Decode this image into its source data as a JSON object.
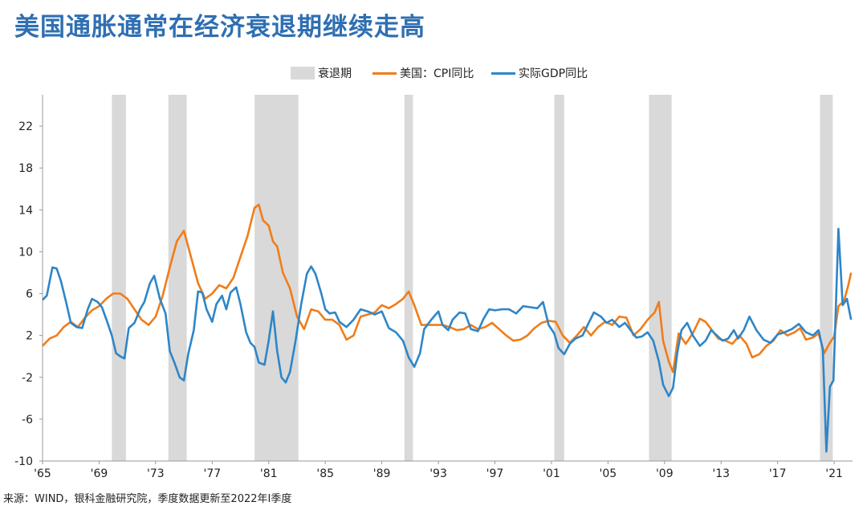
{
  "title": "美国通胀通常在经济衰退期继续走高",
  "source": "来源：WIND，银科金融研究院，季度数据更新至2022年I季度",
  "chart_data": {
    "type": "line",
    "legend": [
      {
        "name": "衰退期",
        "kind": "box",
        "color": "#d9d9d9"
      },
      {
        "name": "美国：CPI同比",
        "kind": "line",
        "color": "#f07d1a"
      },
      {
        "name": "实际GDP同比",
        "kind": "line",
        "color": "#2e86c8"
      }
    ],
    "legend_position": "top-center",
    "ylim": [
      -10,
      25
    ],
    "yticks": [
      -10,
      -6,
      -2,
      2,
      6,
      10,
      14,
      18,
      22
    ],
    "xlim": [
      1965,
      2022.3
    ],
    "xticks": [
      {
        "v": 1965,
        "label": "'65"
      },
      {
        "v": 1969,
        "label": "'69"
      },
      {
        "v": 1973,
        "label": "'73"
      },
      {
        "v": 1977,
        "label": "'77"
      },
      {
        "v": 1981,
        "label": "'81"
      },
      {
        "v": 1985,
        "label": "'85"
      },
      {
        "v": 1989,
        "label": "'89"
      },
      {
        "v": 1993,
        "label": "'93"
      },
      {
        "v": 1997,
        "label": "'97"
      },
      {
        "v": 2001,
        "label": "'01"
      },
      {
        "v": 2005,
        "label": "'05"
      },
      {
        "v": 2009,
        "label": "'09"
      },
      {
        "v": 2013,
        "label": "'13"
      },
      {
        "v": 2017,
        "label": "'17"
      },
      {
        "v": 2021,
        "label": "'21"
      }
    ],
    "grid": false,
    "recessions": [
      [
        1969.9,
        1970.9
      ],
      [
        1973.9,
        1975.2
      ],
      [
        1980.0,
        1983.1
      ],
      [
        1990.6,
        1991.2
      ],
      [
        2001.2,
        2001.9
      ],
      [
        2007.9,
        2009.5
      ],
      [
        2020.0,
        2020.9
      ]
    ],
    "series": [
      {
        "name": "美国：CPI同比",
        "color": "#f07d1a",
        "points": [
          [
            1965.0,
            1.0
          ],
          [
            1965.5,
            1.7
          ],
          [
            1966.0,
            2.0
          ],
          [
            1966.5,
            2.8
          ],
          [
            1967.0,
            3.3
          ],
          [
            1967.5,
            2.8
          ],
          [
            1968.0,
            3.7
          ],
          [
            1968.5,
            4.4
          ],
          [
            1969.0,
            4.8
          ],
          [
            1969.5,
            5.5
          ],
          [
            1970.0,
            6.0
          ],
          [
            1970.5,
            6.0
          ],
          [
            1971.0,
            5.5
          ],
          [
            1971.5,
            4.5
          ],
          [
            1972.0,
            3.5
          ],
          [
            1972.5,
            3.0
          ],
          [
            1973.0,
            3.8
          ],
          [
            1973.5,
            5.8
          ],
          [
            1974.0,
            8.5
          ],
          [
            1974.5,
            11.0
          ],
          [
            1975.0,
            12.0
          ],
          [
            1975.5,
            9.5
          ],
          [
            1976.0,
            7.0
          ],
          [
            1976.5,
            5.5
          ],
          [
            1977.0,
            6.0
          ],
          [
            1977.5,
            6.8
          ],
          [
            1978.0,
            6.5
          ],
          [
            1978.5,
            7.5
          ],
          [
            1979.0,
            9.5
          ],
          [
            1979.5,
            11.5
          ],
          [
            1980.0,
            14.2
          ],
          [
            1980.3,
            14.5
          ],
          [
            1980.6,
            13.0
          ],
          [
            1981.0,
            12.5
          ],
          [
            1981.3,
            11.0
          ],
          [
            1981.6,
            10.5
          ],
          [
            1982.0,
            8.0
          ],
          [
            1982.5,
            6.5
          ],
          [
            1983.0,
            3.8
          ],
          [
            1983.5,
            2.6
          ],
          [
            1984.0,
            4.5
          ],
          [
            1984.5,
            4.3
          ],
          [
            1985.0,
            3.5
          ],
          [
            1985.5,
            3.5
          ],
          [
            1986.0,
            3.0
          ],
          [
            1986.5,
            1.6
          ],
          [
            1987.0,
            2.0
          ],
          [
            1987.5,
            3.8
          ],
          [
            1988.0,
            4.0
          ],
          [
            1988.5,
            4.2
          ],
          [
            1989.0,
            4.9
          ],
          [
            1989.5,
            4.6
          ],
          [
            1990.0,
            5.0
          ],
          [
            1990.5,
            5.5
          ],
          [
            1990.9,
            6.2
          ],
          [
            1991.3,
            4.9
          ],
          [
            1991.8,
            3.0
          ],
          [
            1992.3,
            3.0
          ],
          [
            1992.8,
            3.0
          ],
          [
            1993.3,
            3.0
          ],
          [
            1993.8,
            2.8
          ],
          [
            1994.3,
            2.5
          ],
          [
            1994.8,
            2.6
          ],
          [
            1995.3,
            3.0
          ],
          [
            1995.8,
            2.6
          ],
          [
            1996.3,
            2.8
          ],
          [
            1996.8,
            3.2
          ],
          [
            1997.3,
            2.6
          ],
          [
            1997.8,
            2.0
          ],
          [
            1998.3,
            1.5
          ],
          [
            1998.8,
            1.6
          ],
          [
            1999.3,
            2.0
          ],
          [
            1999.8,
            2.7
          ],
          [
            2000.3,
            3.2
          ],
          [
            2000.8,
            3.4
          ],
          [
            2001.3,
            3.3
          ],
          [
            2001.8,
            2.0
          ],
          [
            2002.3,
            1.3
          ],
          [
            2002.8,
            2.0
          ],
          [
            2003.3,
            2.8
          ],
          [
            2003.8,
            2.0
          ],
          [
            2004.3,
            2.8
          ],
          [
            2004.8,
            3.3
          ],
          [
            2005.3,
            3.0
          ],
          [
            2005.8,
            3.8
          ],
          [
            2006.3,
            3.7
          ],
          [
            2006.8,
            2.0
          ],
          [
            2007.3,
            2.6
          ],
          [
            2007.8,
            3.5
          ],
          [
            2008.3,
            4.2
          ],
          [
            2008.6,
            5.2
          ],
          [
            2008.9,
            1.5
          ],
          [
            2009.3,
            -0.5
          ],
          [
            2009.6,
            -1.5
          ],
          [
            2010.0,
            2.2
          ],
          [
            2010.5,
            1.2
          ],
          [
            2011.0,
            2.2
          ],
          [
            2011.5,
            3.6
          ],
          [
            2011.9,
            3.3
          ],
          [
            2012.3,
            2.6
          ],
          [
            2012.8,
            1.7
          ],
          [
            2013.3,
            1.5
          ],
          [
            2013.8,
            1.2
          ],
          [
            2014.3,
            2.0
          ],
          [
            2014.8,
            1.2
          ],
          [
            2015.2,
            -0.1
          ],
          [
            2015.7,
            0.2
          ],
          [
            2016.2,
            1.0
          ],
          [
            2016.7,
            1.5
          ],
          [
            2017.2,
            2.5
          ],
          [
            2017.7,
            2.0
          ],
          [
            2018.2,
            2.3
          ],
          [
            2018.6,
            2.7
          ],
          [
            2019.0,
            1.6
          ],
          [
            2019.5,
            1.8
          ],
          [
            2019.9,
            2.2
          ],
          [
            2020.3,
            0.3
          ],
          [
            2020.7,
            1.3
          ],
          [
            2021.0,
            1.9
          ],
          [
            2021.3,
            4.8
          ],
          [
            2021.7,
            5.3
          ],
          [
            2022.0,
            6.8
          ],
          [
            2022.2,
            8.0
          ]
        ]
      },
      {
        "name": "实际GDP同比",
        "color": "#2e86c8",
        "points": [
          [
            1965.0,
            5.4
          ],
          [
            1965.3,
            5.8
          ],
          [
            1965.7,
            8.5
          ],
          [
            1966.0,
            8.4
          ],
          [
            1966.3,
            7.2
          ],
          [
            1966.7,
            5.0
          ],
          [
            1967.0,
            3.2
          ],
          [
            1967.4,
            2.8
          ],
          [
            1967.8,
            2.7
          ],
          [
            1968.2,
            4.5
          ],
          [
            1968.5,
            5.5
          ],
          [
            1968.9,
            5.2
          ],
          [
            1969.2,
            4.7
          ],
          [
            1969.6,
            3.2
          ],
          [
            1969.9,
            2.0
          ],
          [
            1970.2,
            0.3
          ],
          [
            1970.5,
            0.0
          ],
          [
            1970.8,
            -0.2
          ],
          [
            1971.1,
            2.7
          ],
          [
            1971.5,
            3.2
          ],
          [
            1971.9,
            4.5
          ],
          [
            1972.2,
            5.2
          ],
          [
            1972.6,
            7.0
          ],
          [
            1972.9,
            7.7
          ],
          [
            1973.3,
            5.5
          ],
          [
            1973.7,
            4.1
          ],
          [
            1974.0,
            0.5
          ],
          [
            1974.3,
            -0.5
          ],
          [
            1974.7,
            -2.0
          ],
          [
            1975.0,
            -2.3
          ],
          [
            1975.3,
            0.2
          ],
          [
            1975.7,
            2.5
          ],
          [
            1976.0,
            6.2
          ],
          [
            1976.3,
            6.1
          ],
          [
            1976.6,
            4.5
          ],
          [
            1977.0,
            3.3
          ],
          [
            1977.3,
            5.0
          ],
          [
            1977.7,
            5.8
          ],
          [
            1978.0,
            4.5
          ],
          [
            1978.3,
            6.1
          ],
          [
            1978.7,
            6.6
          ],
          [
            1979.0,
            5.0
          ],
          [
            1979.4,
            2.3
          ],
          [
            1979.7,
            1.3
          ],
          [
            1980.0,
            0.9
          ],
          [
            1980.3,
            -0.6
          ],
          [
            1980.7,
            -0.8
          ],
          [
            1981.0,
            1.5
          ],
          [
            1981.3,
            4.3
          ],
          [
            1981.6,
            0.5
          ],
          [
            1981.9,
            -2.0
          ],
          [
            1982.2,
            -2.5
          ],
          [
            1982.5,
            -1.5
          ],
          [
            1982.9,
            1.5
          ],
          [
            1983.3,
            5.0
          ],
          [
            1983.7,
            7.9
          ],
          [
            1984.0,
            8.6
          ],
          [
            1984.3,
            7.9
          ],
          [
            1984.7,
            6.1
          ],
          [
            1985.0,
            4.5
          ],
          [
            1985.3,
            4.1
          ],
          [
            1985.7,
            4.2
          ],
          [
            1986.0,
            3.3
          ],
          [
            1986.5,
            2.8
          ],
          [
            1987.0,
            3.5
          ],
          [
            1987.5,
            4.5
          ],
          [
            1988.0,
            4.3
          ],
          [
            1988.5,
            4.0
          ],
          [
            1989.0,
            4.3
          ],
          [
            1989.5,
            2.7
          ],
          [
            1990.0,
            2.3
          ],
          [
            1990.5,
            1.5
          ],
          [
            1990.9,
            -0.1
          ],
          [
            1991.3,
            -1.0
          ],
          [
            1991.7,
            0.3
          ],
          [
            1992.0,
            2.6
          ],
          [
            1992.5,
            3.5
          ],
          [
            1993.0,
            4.3
          ],
          [
            1993.3,
            3.0
          ],
          [
            1993.7,
            2.5
          ],
          [
            1994.0,
            3.5
          ],
          [
            1994.5,
            4.2
          ],
          [
            1994.9,
            4.1
          ],
          [
            1995.3,
            2.6
          ],
          [
            1995.8,
            2.4
          ],
          [
            1996.2,
            3.6
          ],
          [
            1996.6,
            4.5
          ],
          [
            1997.0,
            4.4
          ],
          [
            1997.5,
            4.5
          ],
          [
            1998.0,
            4.5
          ],
          [
            1998.5,
            4.1
          ],
          [
            1999.0,
            4.8
          ],
          [
            1999.5,
            4.7
          ],
          [
            2000.0,
            4.6
          ],
          [
            2000.4,
            5.2
          ],
          [
            2000.8,
            3.0
          ],
          [
            2001.2,
            2.2
          ],
          [
            2001.5,
            0.8
          ],
          [
            2001.9,
            0.2
          ],
          [
            2002.3,
            1.2
          ],
          [
            2002.7,
            1.7
          ],
          [
            2003.2,
            2.0
          ],
          [
            2003.6,
            3.1
          ],
          [
            2004.0,
            4.2
          ],
          [
            2004.5,
            3.8
          ],
          [
            2004.9,
            3.2
          ],
          [
            2005.3,
            3.5
          ],
          [
            2005.8,
            2.8
          ],
          [
            2006.2,
            3.2
          ],
          [
            2006.6,
            2.5
          ],
          [
            2007.0,
            1.8
          ],
          [
            2007.4,
            1.9
          ],
          [
            2007.8,
            2.3
          ],
          [
            2008.2,
            1.5
          ],
          [
            2008.6,
            -0.5
          ],
          [
            2008.9,
            -2.7
          ],
          [
            2009.3,
            -3.8
          ],
          [
            2009.6,
            -3.0
          ],
          [
            2009.9,
            0.3
          ],
          [
            2010.2,
            2.5
          ],
          [
            2010.6,
            3.2
          ],
          [
            2011.0,
            2.0
          ],
          [
            2011.5,
            1.0
          ],
          [
            2011.9,
            1.5
          ],
          [
            2012.3,
            2.5
          ],
          [
            2012.7,
            2.0
          ],
          [
            2013.1,
            1.5
          ],
          [
            2013.5,
            1.7
          ],
          [
            2013.9,
            2.5
          ],
          [
            2014.2,
            1.7
          ],
          [
            2014.6,
            2.5
          ],
          [
            2015.0,
            3.8
          ],
          [
            2015.5,
            2.5
          ],
          [
            2016.0,
            1.6
          ],
          [
            2016.5,
            1.3
          ],
          [
            2017.0,
            2.1
          ],
          [
            2017.5,
            2.3
          ],
          [
            2018.0,
            2.6
          ],
          [
            2018.5,
            3.1
          ],
          [
            2019.0,
            2.3
          ],
          [
            2019.5,
            2.0
          ],
          [
            2019.9,
            2.5
          ],
          [
            2020.2,
            0.6
          ],
          [
            2020.45,
            -9.1
          ],
          [
            2020.7,
            -2.9
          ],
          [
            2020.95,
            -2.3
          ],
          [
            2021.3,
            12.2
          ],
          [
            2021.6,
            4.9
          ],
          [
            2021.9,
            5.5
          ],
          [
            2022.2,
            3.5
          ]
        ]
      }
    ]
  }
}
